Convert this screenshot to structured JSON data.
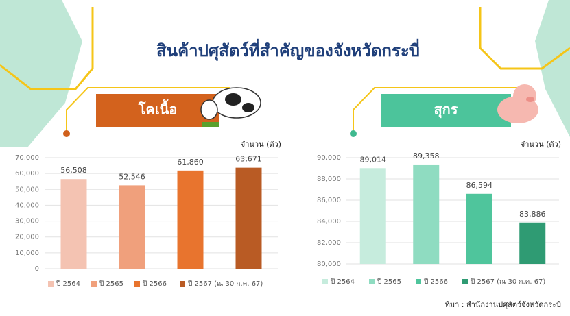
{
  "title": "สินค้าปศุสัตว์ที่สำคัญของจังหวัดกระบี่",
  "source": "ที่มา : สำนักงานปศุสัตว์จังหวัดกระบี่",
  "chart_data": [
    {
      "type": "bar",
      "title": "โคเนื้อ",
      "y_label": "จำนวน (ตัว)",
      "categories": [
        "ปี 2564",
        "ปี 2565",
        "ปี 2566",
        "ปี 2567 (ณ 30 ก.ค. 67)"
      ],
      "values": [
        56508,
        52546,
        61860,
        63671
      ],
      "value_labels": [
        "56,508",
        "52,546",
        "61,860",
        "63,671"
      ],
      "colors": [
        "#f4c3b2",
        "#f0a07c",
        "#e8742e",
        "#b95b24"
      ],
      "ylim": [
        0,
        70000
      ],
      "yticks": [
        0,
        {
          "value": 10000,
          "label": "10,000"
        },
        {
          "value": 20000,
          "label": "20,000"
        },
        {
          "value": 30000,
          "label": "30,000"
        },
        {
          "value": 40000,
          "label": "40,000"
        },
        {
          "value": 50000,
          "label": "50,000"
        },
        {
          "value": 60000,
          "label": "60,000"
        },
        {
          "value": 70000,
          "label": "70,000"
        }
      ],
      "grid": true,
      "legend": "bottom"
    },
    {
      "type": "bar",
      "title": "สุกร",
      "y_label": "จำนวน (ตัว)",
      "categories": [
        "ปี 2564",
        "ปี 2565",
        "ปี 2566",
        "ปี 2567 (ณ 30 ก.ค. 67)"
      ],
      "values": [
        89014,
        89358,
        86594,
        83886
      ],
      "value_labels": [
        "89,014",
        "89,358",
        "86,594",
        "83,886"
      ],
      "colors": [
        "#c6ecdd",
        "#8fdcc1",
        "#4fc59c",
        "#2f9b73"
      ],
      "ylim": [
        80000,
        90000
      ],
      "yticks": [
        {
          "value": 80000,
          "label": "80,000"
        },
        {
          "value": 82000,
          "label": "82,000"
        },
        {
          "value": 84000,
          "label": "84,000"
        },
        {
          "value": 86000,
          "label": "86,000"
        },
        {
          "value": 88000,
          "label": "88,000"
        },
        {
          "value": 90000,
          "label": "90,000"
        }
      ],
      "grid": true,
      "legend": "bottom"
    }
  ]
}
